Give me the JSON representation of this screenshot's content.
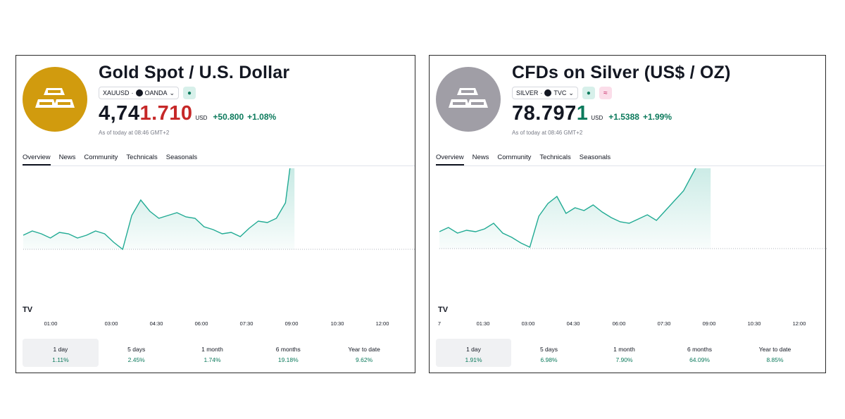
{
  "colors": {
    "accent_green": "#0c7a5c",
    "price_red": "#c62828",
    "gold_logo": "#d19b0e",
    "silver_logo": "#a09ea6"
  },
  "gold": {
    "title": "Gold Spot / U.S. Dollar",
    "symbol": "XAUUSD",
    "broker": "OANDA",
    "price_main": "4,74",
    "price_highlight": "1.710",
    "currency": "USD",
    "change": "+50.800",
    "change_pct": "+1.08%",
    "as_of": "As of today at 08:46 GMT+2",
    "tabs": [
      "Overview",
      "News",
      "Community",
      "Technicals",
      "Seasonals"
    ],
    "x_ticks": [
      "01:00",
      "03:00",
      "04:30",
      "06:00",
      "07:30",
      "09:00",
      "10:30",
      "12:00"
    ],
    "ranges": [
      {
        "label": "1 day",
        "value": "1.11%"
      },
      {
        "label": "5 days",
        "value": "2.45%"
      },
      {
        "label": "1 month",
        "value": "1.74%"
      },
      {
        "label": "6 months",
        "value": "19.18%"
      },
      {
        "label": "Year to date",
        "value": "9.62%"
      }
    ],
    "chart_data": {
      "type": "area",
      "x_ticks": [
        "01:00",
        "03:00",
        "04:30",
        "06:00",
        "07:30",
        "09:00",
        "10:30",
        "12:00"
      ],
      "hours": [
        0.0,
        0.3,
        0.6,
        0.9,
        1.2,
        1.5,
        1.8,
        2.1,
        2.4,
        2.7,
        3.0,
        3.3,
        3.6,
        3.9,
        4.2,
        4.5,
        4.8,
        5.1,
        5.4,
        5.7,
        6.0,
        6.3,
        6.6,
        6.9,
        7.2,
        7.5,
        7.8,
        8.1,
        8.4,
        8.7,
        8.9,
        9.0
      ],
      "values": [
        20,
        26,
        22,
        16,
        24,
        22,
        16,
        20,
        26,
        22,
        10,
        0,
        48,
        70,
        54,
        44,
        48,
        52,
        46,
        44,
        32,
        28,
        22,
        24,
        18,
        30,
        40,
        38,
        44,
        66,
        132,
        122
      ]
    }
  },
  "silver": {
    "title": "CFDs on Silver (US$ / OZ)",
    "symbol": "SILVER",
    "broker": "TVC",
    "price_main": "78.797",
    "price_highlight": "1",
    "currency": "USD",
    "change": "+1.5388",
    "change_pct": "+1.99%",
    "as_of": "As of today at 08:46 GMT+2",
    "tabs": [
      "Overview",
      "News",
      "Community",
      "Technicals",
      "Seasonals"
    ],
    "x_ticks": [
      "7",
      "01:30",
      "03:00",
      "04:30",
      "06:00",
      "07:30",
      "09:00",
      "10:30",
      "12:00"
    ],
    "ranges": [
      {
        "label": "1 day",
        "value": "1.91%"
      },
      {
        "label": "5 days",
        "value": "6.98%"
      },
      {
        "label": "1 month",
        "value": "7.90%"
      },
      {
        "label": "6 months",
        "value": "64.09%"
      },
      {
        "label": "Year to date",
        "value": "8.85%"
      }
    ],
    "chart_data": {
      "type": "area",
      "x_ticks": [
        "7",
        "01:30",
        "03:00",
        "04:30",
        "06:00",
        "07:30",
        "09:00",
        "10:30",
        "12:00"
      ],
      "hours": [
        0.0,
        0.3,
        0.6,
        0.9,
        1.2,
        1.5,
        1.8,
        2.1,
        2.4,
        2.7,
        3.0,
        3.3,
        3.6,
        3.9,
        4.2,
        4.5,
        4.8,
        5.1,
        5.4,
        5.7,
        6.0,
        6.3,
        6.6,
        6.9,
        7.2,
        7.5,
        7.8,
        8.1,
        8.4,
        8.7,
        8.9,
        9.0
      ],
      "values": [
        22,
        28,
        20,
        24,
        22,
        26,
        34,
        20,
        14,
        6,
        0,
        44,
        62,
        72,
        48,
        56,
        52,
        60,
        50,
        42,
        36,
        34,
        40,
        46,
        38,
        52,
        66,
        80,
        104,
        128,
        140,
        130
      ]
    }
  }
}
